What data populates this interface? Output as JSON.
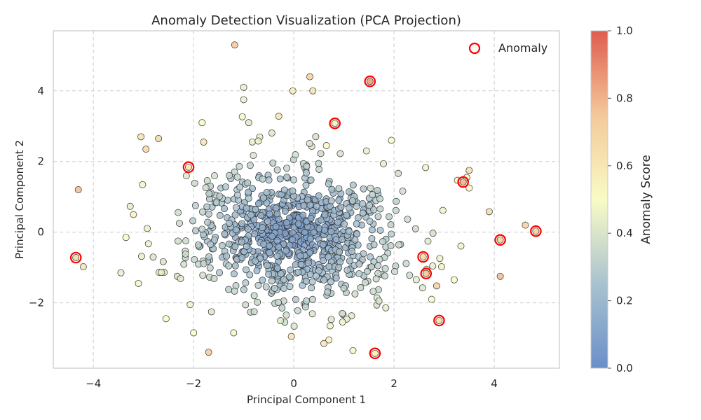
{
  "chart_data": {
    "type": "scatter",
    "title": "Anomaly Detection Visualization (PCA Projection)",
    "xlabel": "Principal Component 1",
    "ylabel": "Principal Component 2",
    "xlim": [
      -4.8,
      5.3
    ],
    "ylim": [
      -3.85,
      5.7
    ],
    "xticks": [
      -4,
      -2,
      0,
      2,
      4
    ],
    "yticks": [
      -2,
      0,
      2,
      4
    ],
    "grid": true,
    "legend": {
      "placement": "top-right",
      "entries": [
        "Anomaly"
      ]
    },
    "colorbar": {
      "label": "Anomaly Score",
      "range": [
        0.0,
        1.0
      ],
      "ticks": [
        "0.0",
        "0.2",
        "0.4",
        "0.6",
        "0.8",
        "1.0"
      ],
      "colormap": [
        "#6a8fc9",
        "#a9c2cf",
        "#f9fbc6",
        "#f3c99a",
        "#df5c4f"
      ]
    },
    "colors": {
      "anomaly_ring": "#ff0000",
      "point_edge": "#333333",
      "grid": "#cccccc"
    },
    "outliers": [
      {
        "x": -1.18,
        "y": 5.3,
        "score": 0.75
      },
      {
        "x": 0.32,
        "y": 4.4,
        "score": 0.72
      },
      {
        "x": 0.38,
        "y": 4.0,
        "score": 0.62
      },
      {
        "x": -0.02,
        "y": 4.0,
        "score": 0.58
      },
      {
        "x": -1.0,
        "y": 4.1,
        "score": 0.45
      },
      {
        "x": -1.0,
        "y": 3.75,
        "score": 0.45
      },
      {
        "x": -0.3,
        "y": 3.28,
        "score": 0.62
      },
      {
        "x": -1.83,
        "y": 3.1,
        "score": 0.5
      },
      {
        "x": -0.9,
        "y": 3.1,
        "score": 0.42
      },
      {
        "x": -3.05,
        "y": 2.7,
        "score": 0.62
      },
      {
        "x": -2.7,
        "y": 2.65,
        "score": 0.68
      },
      {
        "x": -2.95,
        "y": 2.35,
        "score": 0.68
      },
      {
        "x": -1.8,
        "y": 2.55,
        "score": 0.62
      },
      {
        "x": -4.3,
        "y": 1.2,
        "score": 0.78
      },
      {
        "x": -3.2,
        "y": 0.5,
        "score": 0.55
      },
      {
        "x": -3.35,
        "y": -0.15,
        "score": 0.5
      },
      {
        "x": -3.1,
        "y": -1.45,
        "score": 0.48
      },
      {
        "x": -3.45,
        "y": -1.15,
        "score": 0.45
      },
      {
        "x": -4.2,
        "y": -0.98,
        "score": 0.62
      },
      {
        "x": -2.55,
        "y": -2.45,
        "score": 0.5
      },
      {
        "x": -2.0,
        "y": -2.85,
        "score": 0.5
      },
      {
        "x": -1.7,
        "y": -3.4,
        "score": 0.75
      },
      {
        "x": -1.2,
        "y": -2.85,
        "score": 0.48
      },
      {
        "x": 1.18,
        "y": -3.35,
        "score": 0.48
      },
      {
        "x": 0.6,
        "y": -3.15,
        "score": 0.62
      },
      {
        "x": 0.7,
        "y": -3.05,
        "score": 0.55
      },
      {
        "x": -0.05,
        "y": -2.95,
        "score": 0.62
      },
      {
        "x": 2.75,
        "y": -1.9,
        "score": 0.5
      },
      {
        "x": 2.85,
        "y": -1.52,
        "score": 0.72
      },
      {
        "x": 3.2,
        "y": -1.35,
        "score": 0.5
      },
      {
        "x": 2.65,
        "y": -1.05,
        "score": 0.62
      },
      {
        "x": 2.95,
        "y": -0.98,
        "score": 0.55
      },
      {
        "x": 4.12,
        "y": -1.25,
        "score": 0.78
      },
      {
        "x": 3.45,
        "y": 1.55,
        "score": 0.55
      },
      {
        "x": 3.5,
        "y": 1.75,
        "score": 0.65
      },
      {
        "x": 3.5,
        "y": 1.25,
        "score": 0.5
      },
      {
        "x": 3.9,
        "y": 0.58,
        "score": 0.65
      },
      {
        "x": 4.62,
        "y": 0.2,
        "score": 0.72
      },
      {
        "x": 1.95,
        "y": 2.6,
        "score": 0.5
      },
      {
        "x": 1.45,
        "y": 2.3,
        "score": 0.45
      },
      {
        "x": 0.65,
        "y": 2.45,
        "score": 0.5
      }
    ],
    "anomalies": [
      {
        "x": 1.52,
        "y": 4.27,
        "score": 0.82
      },
      {
        "x": 0.82,
        "y": 3.08,
        "score": 0.55
      },
      {
        "x": -2.1,
        "y": 1.84,
        "score": 0.6
      },
      {
        "x": 3.38,
        "y": 1.42,
        "score": 0.78
      },
      {
        "x": 4.12,
        "y": -0.22,
        "score": 0.68
      },
      {
        "x": 4.83,
        "y": 0.03,
        "score": 0.68
      },
      {
        "x": -4.35,
        "y": -0.72,
        "score": 0.65
      },
      {
        "x": 2.58,
        "y": -0.7,
        "score": 0.65
      },
      {
        "x": 2.64,
        "y": -1.17,
        "score": 0.72
      },
      {
        "x": 2.9,
        "y": -2.5,
        "score": 0.62
      },
      {
        "x": 1.62,
        "y": -3.43,
        "score": 0.55
      }
    ]
  }
}
